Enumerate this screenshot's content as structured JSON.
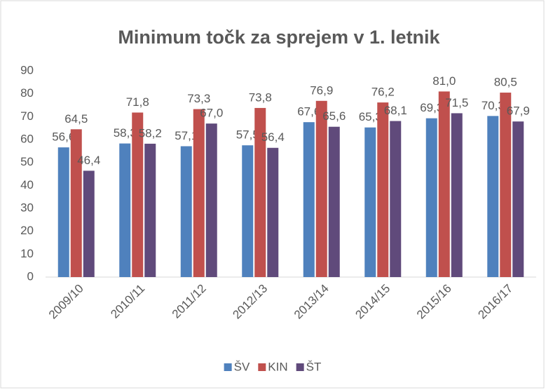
{
  "chart_data": {
    "type": "bar",
    "title": "Minimum točk za sprejem v 1. letnik",
    "categories": [
      "2009/10",
      "2010/11",
      "2011/12",
      "2012/13",
      "2013/14",
      "2014/15",
      "2015/16",
      "2016/17"
    ],
    "series": [
      {
        "name": "ŠV",
        "color": "#4f81bd",
        "values": [
          56.6,
          58.3,
          57.1,
          57.5,
          67.6,
          65.3,
          69.3,
          70.3
        ],
        "value_labels": [
          "56,6",
          "58,3",
          "57,1",
          "57,5",
          "67,6",
          "65,3",
          "69,3",
          "70,3"
        ]
      },
      {
        "name": "KIN",
        "color": "#c0504d",
        "values": [
          64.5,
          71.8,
          73.3,
          73.8,
          76.9,
          76.2,
          81.0,
          80.5
        ],
        "value_labels": [
          "64,5",
          "71,8",
          "73,3",
          "73,8",
          "76,9",
          "76,2",
          "81,0",
          "80,5"
        ]
      },
      {
        "name": "ŠT",
        "color": "#604a7b",
        "values": [
          46.4,
          58.2,
          67.0,
          56.4,
          65.6,
          68.1,
          71.5,
          67.9
        ],
        "value_labels": [
          "46,4",
          "58,2",
          "67,0",
          "56,4",
          "65,6",
          "68,1",
          "71,5",
          "67,9"
        ]
      }
    ],
    "ylim": [
      0,
      90
    ],
    "yticks": [
      0,
      10,
      20,
      30,
      40,
      50,
      60,
      70,
      80,
      90
    ],
    "grid": false,
    "legend": "bottom"
  }
}
